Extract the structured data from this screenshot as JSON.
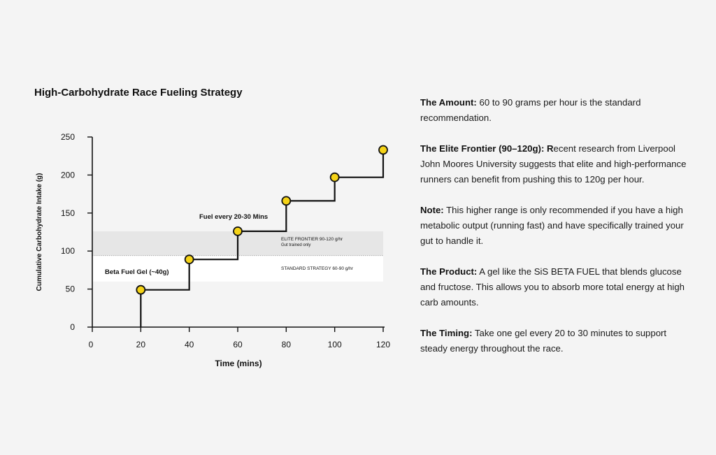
{
  "chart_data": {
    "type": "line",
    "title": "High-Carbohydrate Race Fueling Strategy",
    "xlabel": "Time (mins)",
    "ylabel": "Cumulative Carbohydrate Intake (g)",
    "xlim": [
      0,
      120
    ],
    "ylim": [
      0,
      250
    ],
    "x_ticks": [
      "0",
      "20",
      "40",
      "60",
      "80",
      "100",
      "120"
    ],
    "y_ticks": [
      "0",
      "50",
      "100",
      "150",
      "200",
      "250"
    ],
    "series": [
      {
        "name": "Cumulative intake",
        "step": true,
        "points": [
          {
            "x": 20,
            "y": 0
          },
          {
            "x": 20,
            "y": 49
          },
          {
            "x": 40,
            "y": 89
          },
          {
            "x": 60,
            "y": 126
          },
          {
            "x": 80,
            "y": 166
          },
          {
            "x": 100,
            "y": 197
          },
          {
            "x": 120,
            "y": 233
          }
        ],
        "marker_points": [
          {
            "x": 20,
            "y": 49
          },
          {
            "x": 40,
            "y": 89
          },
          {
            "x": 60,
            "y": 126
          },
          {
            "x": 80,
            "y": 166
          },
          {
            "x": 100,
            "y": 197
          },
          {
            "x": 120,
            "y": 233
          }
        ]
      }
    ],
    "bands": [
      {
        "name": "elite",
        "y_from": 94,
        "y_to": 126,
        "label": "ELITE FRONTIER 90-120 g/hr",
        "sublabel": "Gut trained only",
        "color": "#e6e6e6"
      },
      {
        "name": "standard",
        "y_from": 60,
        "y_to": 94,
        "label": "STANDARD STRATEGY 60-90 g/hr",
        "color": "#ffffff"
      }
    ],
    "annotations": [
      {
        "name": "beta-fuel-gel",
        "text": "Beta Fuel Gel (~40g)"
      },
      {
        "name": "fuel-every",
        "text": "Fuel every 20-30 Mins"
      }
    ],
    "colors": {
      "line": "#111111",
      "marker_fill": "#f5d317",
      "marker_stroke": "#111111",
      "divider": "#9a9a9a"
    }
  },
  "notes": [
    {
      "label": "The Amount:",
      "text": " 60 to 90 grams per hour is the standard recommendation."
    },
    {
      "label": "The Elite Frontier (90–120g): R",
      "text": "ecent research from Liverpool John Moores University suggests that elite and high-performance runners can benefit from pushing this to 120g per hour."
    },
    {
      "label": "Note:",
      "text": " This higher range is only recommended if you have a high metabolic output (running fast) and have specifically trained your gut to handle it."
    },
    {
      "label": "The Product:",
      "text": " A gel like the SiS BETA FUEL that blends glucose and fructose. This allows you to absorb more total energy at high carb amounts."
    },
    {
      "label": "The Timing:",
      "text": " Take one gel every 20 to 30 minutes to support steady energy throughout the race."
    }
  ]
}
